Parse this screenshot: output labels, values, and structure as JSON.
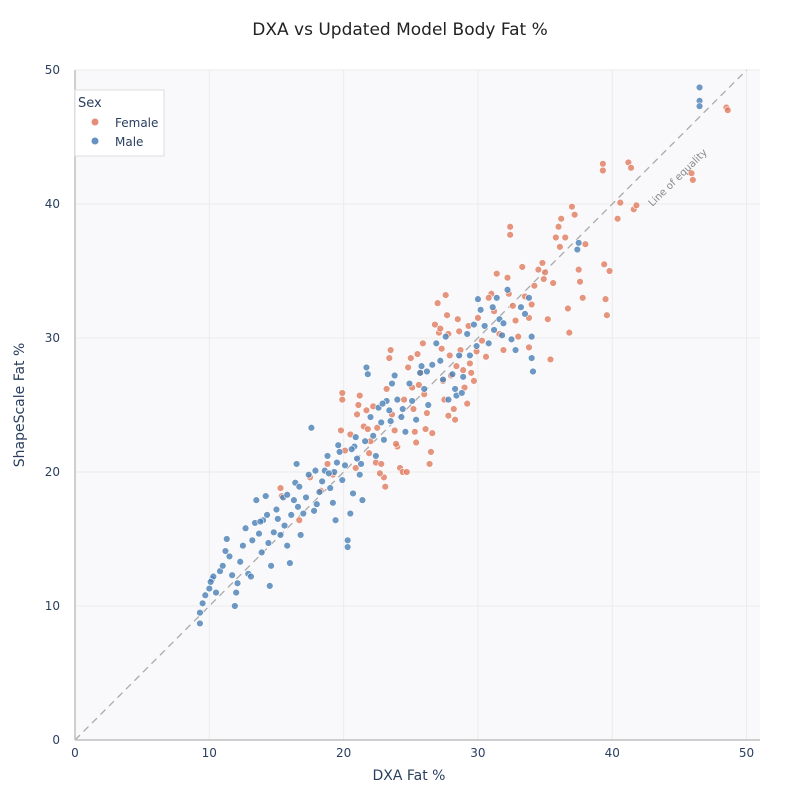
{
  "chart_data": {
    "type": "scatter",
    "title": "DXA vs Updated Model Body Fat %",
    "xlabel": "DXA Fat %",
    "ylabel": "ShapeScale Fat %",
    "xlim": [
      0,
      51
    ],
    "ylim": [
      0,
      50
    ],
    "xticks": [
      0,
      10,
      20,
      30,
      40,
      50
    ],
    "yticks": [
      0,
      10,
      20,
      30,
      40,
      50
    ],
    "grid": true,
    "legend": {
      "title": "Sex",
      "position": "top-left"
    },
    "annotation": {
      "text": "Line of equality",
      "line": [
        [
          0,
          0
        ],
        [
          50,
          50
        ]
      ]
    },
    "colors": {
      "Female": "#e07a5f",
      "Male": "#4a7fb5",
      "plot_bg": "#f9f9fb",
      "grid": "#ebebeb",
      "ref_line": "#aaaaaa"
    },
    "series": [
      {
        "name": "Female",
        "points": [
          [
            15.3,
            18.8
          ],
          [
            15.4,
            18.2
          ],
          [
            16.7,
            16.4
          ],
          [
            17.5,
            19.6
          ],
          [
            18.3,
            18.6
          ],
          [
            18.8,
            20.6
          ],
          [
            19.2,
            19.8
          ],
          [
            19.9,
            25.4
          ],
          [
            19.9,
            25.9
          ],
          [
            19.8,
            23.1
          ],
          [
            20.1,
            21.6
          ],
          [
            20.5,
            22.8
          ],
          [
            20.9,
            20.3
          ],
          [
            21.0,
            24.3
          ],
          [
            21.1,
            25.0
          ],
          [
            21.2,
            25.7
          ],
          [
            21.5,
            23.4
          ],
          [
            21.7,
            24.6
          ],
          [
            21.8,
            23.2
          ],
          [
            21.9,
            21.4
          ],
          [
            22.0,
            22.3
          ],
          [
            22.2,
            24.9
          ],
          [
            22.4,
            20.7
          ],
          [
            22.5,
            23.3
          ],
          [
            22.8,
            20.6
          ],
          [
            23.0,
            19.6
          ],
          [
            23.1,
            18.9
          ],
          [
            23.2,
            26.2
          ],
          [
            23.4,
            28.5
          ],
          [
            23.5,
            29.1
          ],
          [
            23.6,
            24.3
          ],
          [
            23.8,
            23.1
          ],
          [
            24.0,
            21.9
          ],
          [
            24.2,
            20.3
          ],
          [
            24.4,
            20.0
          ],
          [
            24.5,
            25.4
          ],
          [
            24.8,
            27.8
          ],
          [
            25.0,
            28.5
          ],
          [
            25.1,
            26.3
          ],
          [
            25.2,
            24.7
          ],
          [
            25.3,
            23.0
          ],
          [
            25.4,
            22.2
          ],
          [
            25.5,
            28.8
          ],
          [
            25.7,
            27.4
          ],
          [
            25.9,
            29.6
          ],
          [
            26.0,
            25.8
          ],
          [
            26.2,
            24.4
          ],
          [
            26.4,
            20.6
          ],
          [
            26.5,
            21.5
          ],
          [
            26.6,
            22.9
          ],
          [
            26.8,
            31.0
          ],
          [
            27.0,
            32.6
          ],
          [
            27.1,
            30.4
          ],
          [
            27.3,
            29.2
          ],
          [
            27.4,
            26.8
          ],
          [
            27.5,
            25.4
          ],
          [
            27.6,
            33.2
          ],
          [
            27.7,
            31.7
          ],
          [
            27.8,
            30.3
          ],
          [
            27.9,
            28.7
          ],
          [
            28.0,
            27.2
          ],
          [
            28.2,
            24.7
          ],
          [
            28.3,
            23.9
          ],
          [
            28.5,
            31.4
          ],
          [
            28.6,
            30.5
          ],
          [
            28.7,
            29.1
          ],
          [
            28.9,
            27.6
          ],
          [
            29.0,
            26.3
          ],
          [
            29.2,
            25.1
          ],
          [
            29.3,
            30.9
          ],
          [
            29.4,
            28.1
          ],
          [
            29.5,
            27.4
          ],
          [
            29.7,
            26.8
          ],
          [
            30.0,
            31.5
          ],
          [
            30.3,
            29.8
          ],
          [
            30.6,
            28.6
          ],
          [
            31.0,
            33.3
          ],
          [
            31.2,
            32.0
          ],
          [
            31.6,
            30.3
          ],
          [
            31.9,
            29.1
          ],
          [
            32.2,
            34.5
          ],
          [
            32.3,
            33.3
          ],
          [
            32.4,
            38.3
          ],
          [
            32.4,
            37.7
          ],
          [
            32.6,
            32.4
          ],
          [
            32.8,
            31.3
          ],
          [
            33.0,
            30.1
          ],
          [
            33.3,
            35.3
          ],
          [
            33.5,
            33.1
          ],
          [
            33.8,
            31.5
          ],
          [
            34.0,
            32.5
          ],
          [
            34.2,
            33.9
          ],
          [
            34.5,
            35.1
          ],
          [
            34.8,
            35.6
          ],
          [
            35.0,
            34.9
          ],
          [
            35.2,
            31.4
          ],
          [
            35.4,
            28.4
          ],
          [
            35.6,
            34.1
          ],
          [
            35.8,
            37.5
          ],
          [
            36.0,
            38.3
          ],
          [
            36.2,
            38.9
          ],
          [
            36.5,
            37.5
          ],
          [
            36.7,
            32.2
          ],
          [
            36.8,
            30.4
          ],
          [
            37.0,
            39.8
          ],
          [
            37.2,
            39.2
          ],
          [
            37.5,
            35.1
          ],
          [
            37.6,
            34.2
          ],
          [
            37.8,
            33.0
          ],
          [
            38.0,
            37.0
          ],
          [
            39.3,
            43.0
          ],
          [
            39.3,
            42.5
          ],
          [
            39.4,
            35.5
          ],
          [
            39.5,
            32.9
          ],
          [
            39.6,
            31.7
          ],
          [
            39.8,
            35.0
          ],
          [
            40.4,
            38.9
          ],
          [
            40.6,
            40.1
          ],
          [
            41.2,
            43.1
          ],
          [
            41.4,
            42.7
          ],
          [
            41.6,
            39.6
          ],
          [
            41.8,
            39.9
          ],
          [
            45.9,
            42.3
          ],
          [
            46.0,
            41.8
          ],
          [
            48.5,
            47.2
          ],
          [
            48.6,
            47.0
          ],
          [
            27.2,
            30.7
          ],
          [
            28.4,
            27.9
          ],
          [
            26.1,
            23.2
          ],
          [
            24.7,
            20.0
          ],
          [
            30.8,
            33.0
          ],
          [
            33.8,
            29.3
          ],
          [
            36.1,
            36.8
          ],
          [
            29.9,
            29.0
          ],
          [
            31.4,
            34.8
          ],
          [
            23.9,
            22.1
          ],
          [
            22.7,
            19.9
          ],
          [
            25.6,
            26.5
          ],
          [
            27.8,
            24.2
          ],
          [
            34.9,
            34.4
          ]
        ]
      },
      {
        "name": "Male",
        "points": [
          [
            9.3,
            8.7
          ],
          [
            9.3,
            9.5
          ],
          [
            9.5,
            10.2
          ],
          [
            9.7,
            10.8
          ],
          [
            10.0,
            11.3
          ],
          [
            10.2,
            12.0
          ],
          [
            10.3,
            12.2
          ],
          [
            10.5,
            11.0
          ],
          [
            10.8,
            12.6
          ],
          [
            11.0,
            13.0
          ],
          [
            11.2,
            14.1
          ],
          [
            11.3,
            15.0
          ],
          [
            11.5,
            13.7
          ],
          [
            11.7,
            12.3
          ],
          [
            11.9,
            10.0
          ],
          [
            12.1,
            11.7
          ],
          [
            12.3,
            13.3
          ],
          [
            12.5,
            14.5
          ],
          [
            12.7,
            15.8
          ],
          [
            12.9,
            12.4
          ],
          [
            13.1,
            12.2
          ],
          [
            13.2,
            14.9
          ],
          [
            13.4,
            16.2
          ],
          [
            13.5,
            17.9
          ],
          [
            13.7,
            15.4
          ],
          [
            13.9,
            14.0
          ],
          [
            14.0,
            16.4
          ],
          [
            14.2,
            18.2
          ],
          [
            14.3,
            16.8
          ],
          [
            14.4,
            14.7
          ],
          [
            14.5,
            11.5
          ],
          [
            14.6,
            13.0
          ],
          [
            14.8,
            15.5
          ],
          [
            15.0,
            17.2
          ],
          [
            15.1,
            16.5
          ],
          [
            15.3,
            15.3
          ],
          [
            15.5,
            18.1
          ],
          [
            15.6,
            16.0
          ],
          [
            15.8,
            14.5
          ],
          [
            16.0,
            13.2
          ],
          [
            16.1,
            16.8
          ],
          [
            16.3,
            17.9
          ],
          [
            16.4,
            19.2
          ],
          [
            16.5,
            20.6
          ],
          [
            16.6,
            17.4
          ],
          [
            16.8,
            15.3
          ],
          [
            17.0,
            16.9
          ],
          [
            17.2,
            18.1
          ],
          [
            17.4,
            19.8
          ],
          [
            17.6,
            23.3
          ],
          [
            17.8,
            17.1
          ],
          [
            18.0,
            17.6
          ],
          [
            18.2,
            18.5
          ],
          [
            18.4,
            19.3
          ],
          [
            18.6,
            20.1
          ],
          [
            18.8,
            21.2
          ],
          [
            19.0,
            18.8
          ],
          [
            19.2,
            17.7
          ],
          [
            19.3,
            20.0
          ],
          [
            19.4,
            16.4
          ],
          [
            19.5,
            20.7
          ],
          [
            19.7,
            21.5
          ],
          [
            19.9,
            19.4
          ],
          [
            20.1,
            20.5
          ],
          [
            20.3,
            14.9
          ],
          [
            20.3,
            14.4
          ],
          [
            20.5,
            16.9
          ],
          [
            20.7,
            18.4
          ],
          [
            20.8,
            21.9
          ],
          [
            20.9,
            22.6
          ],
          [
            21.0,
            21.0
          ],
          [
            21.2,
            19.8
          ],
          [
            21.4,
            17.9
          ],
          [
            21.6,
            22.3
          ],
          [
            21.7,
            27.8
          ],
          [
            21.8,
            27.3
          ],
          [
            22.0,
            24.1
          ],
          [
            22.2,
            22.7
          ],
          [
            22.4,
            21.2
          ],
          [
            22.6,
            24.8
          ],
          [
            22.8,
            23.7
          ],
          [
            23.0,
            22.4
          ],
          [
            23.2,
            25.3
          ],
          [
            23.4,
            24.6
          ],
          [
            23.6,
            26.6
          ],
          [
            23.8,
            27.2
          ],
          [
            24.0,
            25.4
          ],
          [
            24.3,
            24.1
          ],
          [
            24.6,
            23.0
          ],
          [
            24.9,
            26.6
          ],
          [
            25.1,
            25.3
          ],
          [
            25.4,
            23.9
          ],
          [
            25.7,
            27.4
          ],
          [
            26.0,
            26.2
          ],
          [
            26.3,
            25.0
          ],
          [
            26.6,
            28.0
          ],
          [
            26.9,
            29.6
          ],
          [
            27.2,
            28.3
          ],
          [
            27.4,
            26.9
          ],
          [
            27.6,
            30.1
          ],
          [
            27.8,
            25.4
          ],
          [
            28.1,
            27.3
          ],
          [
            28.4,
            25.7
          ],
          [
            28.6,
            28.7
          ],
          [
            28.9,
            27.1
          ],
          [
            29.2,
            30.3
          ],
          [
            29.4,
            28.7
          ],
          [
            29.7,
            31.0
          ],
          [
            30.0,
            32.9
          ],
          [
            30.2,
            32.1
          ],
          [
            30.5,
            30.9
          ],
          [
            30.8,
            29.6
          ],
          [
            31.1,
            32.3
          ],
          [
            31.4,
            33.0
          ],
          [
            31.6,
            31.4
          ],
          [
            31.8,
            30.2
          ],
          [
            32.2,
            33.6
          ],
          [
            32.5,
            29.9
          ],
          [
            32.8,
            29.1
          ],
          [
            33.2,
            32.3
          ],
          [
            33.5,
            31.8
          ],
          [
            33.8,
            33.0
          ],
          [
            34.0,
            28.5
          ],
          [
            34.1,
            27.5
          ],
          [
            34.0,
            30.1
          ],
          [
            37.4,
            36.6
          ],
          [
            37.5,
            37.1
          ],
          [
            46.5,
            48.7
          ],
          [
            46.5,
            47.7
          ],
          [
            46.5,
            47.3
          ],
          [
            10.1,
            11.8
          ],
          [
            12.0,
            11.0
          ],
          [
            15.8,
            18.3
          ],
          [
            17.9,
            20.1
          ],
          [
            19.6,
            22.0
          ],
          [
            21.3,
            20.6
          ],
          [
            22.9,
            25.1
          ],
          [
            24.4,
            24.7
          ],
          [
            26.2,
            27.5
          ],
          [
            28.3,
            26.2
          ],
          [
            29.9,
            29.4
          ],
          [
            31.9,
            31.1
          ],
          [
            13.8,
            16.3
          ],
          [
            16.7,
            18.9
          ],
          [
            18.9,
            19.9
          ],
          [
            20.6,
            21.7
          ],
          [
            23.5,
            23.8
          ],
          [
            25.8,
            27.9
          ],
          [
            28.8,
            25.9
          ],
          [
            31.2,
            30.6
          ]
        ]
      }
    ]
  }
}
